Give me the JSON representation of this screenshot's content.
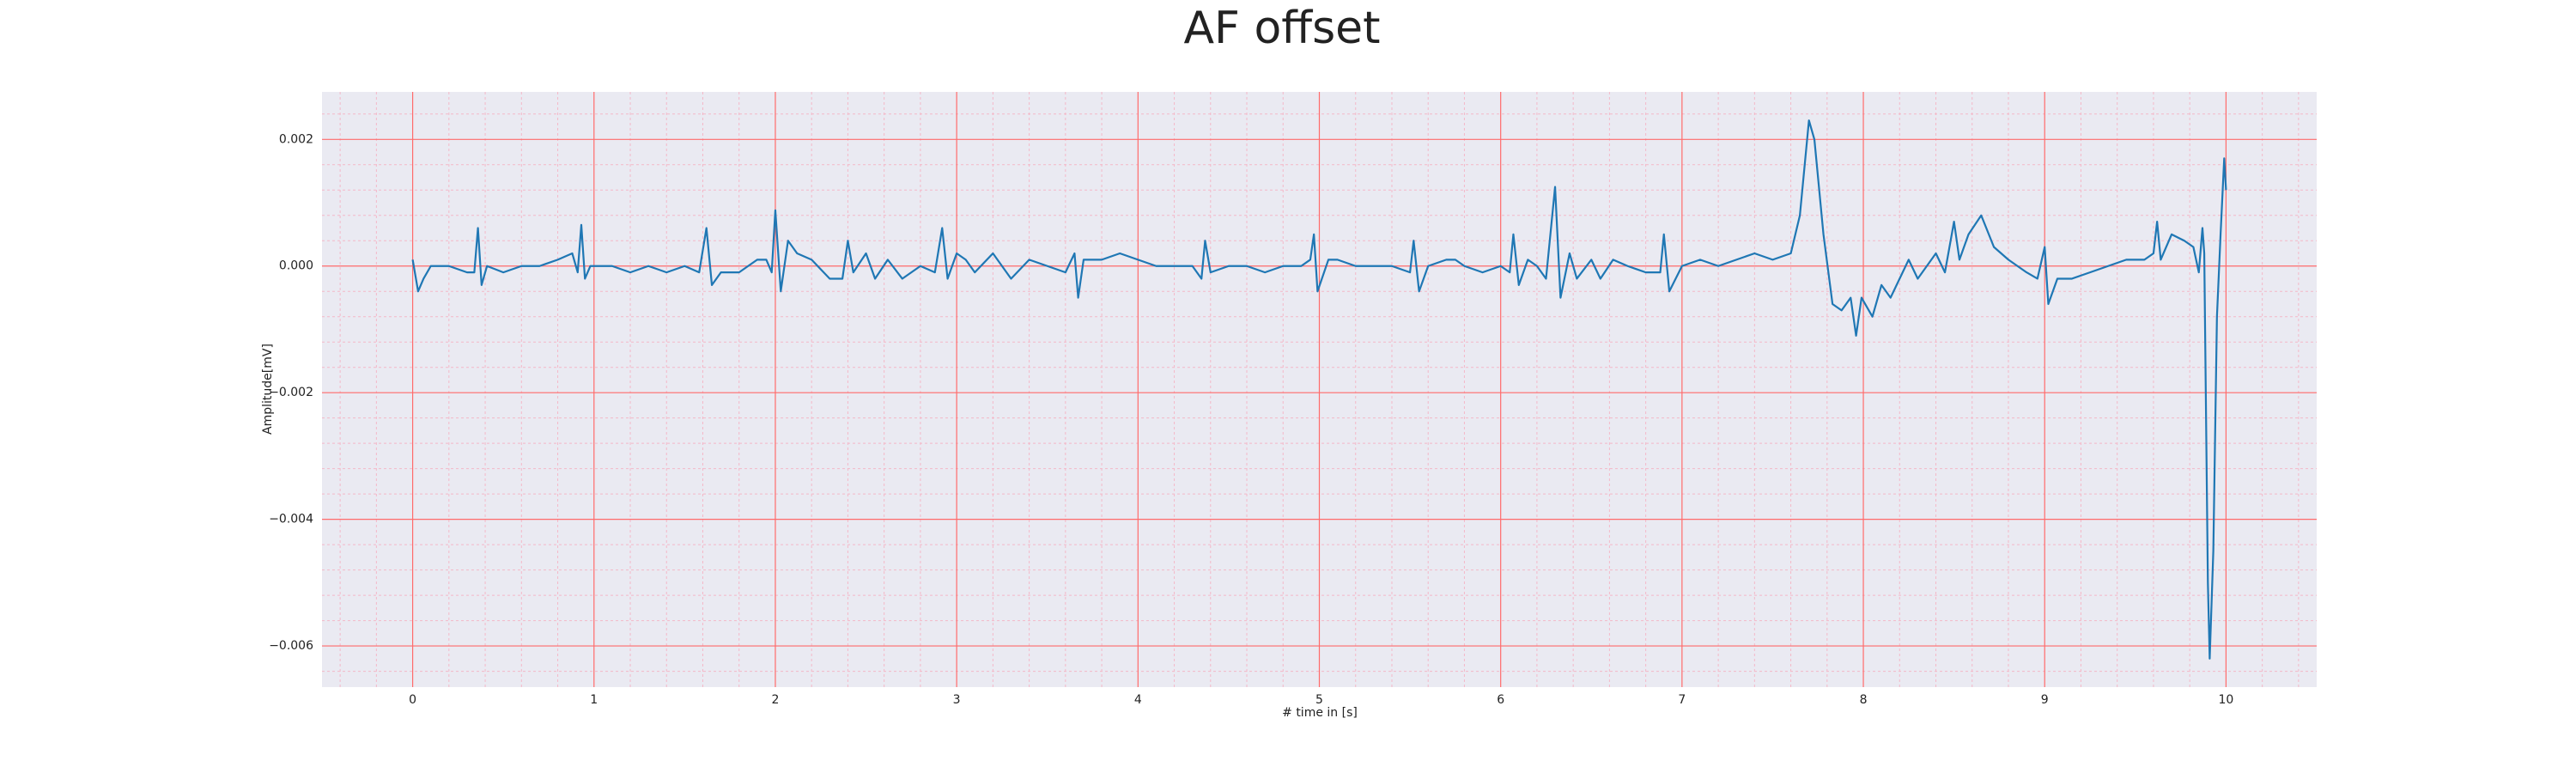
{
  "chart_data": {
    "type": "line",
    "title": "AF offset",
    "xlabel": "# time in [s]",
    "ylabel": "Amplitude[mV]",
    "color": "#1f77b4",
    "background": "#eaeaf2",
    "grid": true,
    "major_grid_color": "#ff6b6b",
    "minor_grid_color": "#f4b8c8",
    "xlim": [
      -0.5,
      10.5
    ],
    "ylim": [
      -0.00665,
      0.00275
    ],
    "xticks": [
      0,
      1,
      2,
      3,
      4,
      5,
      6,
      7,
      8,
      9,
      10
    ],
    "yticks": [
      0.002,
      {
        "value": 0,
        "label": "0.000"
      },
      {
        "value": -0.002,
        "label": "−0.002"
      },
      {
        "value": -0.004,
        "label": "−0.004"
      },
      {
        "value": -0.006,
        "label": "−0.006"
      }
    ],
    "xminorticks": [
      -0.4,
      -0.2,
      0.2,
      0.4,
      0.6,
      0.8,
      1.2,
      1.4,
      1.6,
      1.8,
      2.2,
      2.4,
      2.6,
      2.8,
      3.2,
      3.4,
      3.6,
      3.8,
      4.2,
      4.4,
      4.6,
      4.8,
      5.2,
      5.4,
      5.6,
      5.8,
      6.2,
      6.4,
      6.6,
      6.8,
      7.2,
      7.4,
      7.6,
      7.8,
      8.2,
      8.4,
      8.6,
      8.8,
      9.2,
      9.4,
      9.6,
      9.8,
      10.2,
      10.4
    ],
    "yminorticks": [
      -0.0064,
      -0.0056,
      -0.0052,
      -0.0048,
      -0.0044,
      -0.0036,
      -0.0032,
      -0.0028,
      -0.0024,
      -0.0016,
      -0.0012,
      -0.0008,
      -0.0004,
      0.0004,
      0.0008,
      0.0012,
      0.0016,
      0.0024
    ],
    "x": [
      0,
      0.03,
      0.06,
      0.1,
      0.2,
      0.3,
      0.34,
      0.36,
      0.38,
      0.41,
      0.5,
      0.6,
      0.7,
      0.8,
      0.88,
      0.91,
      0.93,
      0.95,
      0.98,
      1.1,
      1.2,
      1.3,
      1.4,
      1.5,
      1.58,
      1.62,
      1.65,
      1.7,
      1.8,
      1.9,
      1.95,
      1.98,
      2.0,
      2.03,
      2.07,
      2.12,
      2.2,
      2.3,
      2.37,
      2.4,
      2.43,
      2.5,
      2.55,
      2.62,
      2.7,
      2.8,
      2.88,
      2.92,
      2.95,
      3.0,
      3.05,
      3.1,
      3.2,
      3.3,
      3.4,
      3.5,
      3.6,
      3.65,
      3.67,
      3.7,
      3.8,
      3.9,
      4.0,
      4.1,
      4.2,
      4.3,
      4.35,
      4.37,
      4.4,
      4.5,
      4.6,
      4.7,
      4.8,
      4.9,
      4.95,
      4.97,
      4.99,
      5.05,
      5.1,
      5.2,
      5.3,
      5.4,
      5.5,
      5.52,
      5.55,
      5.6,
      5.7,
      5.75,
      5.8,
      5.9,
      6.0,
      6.05,
      6.07,
      6.1,
      6.15,
      6.2,
      6.25,
      6.3,
      6.33,
      6.38,
      6.42,
      6.5,
      6.55,
      6.62,
      6.7,
      6.8,
      6.88,
      6.9,
      6.93,
      7.0,
      7.1,
      7.2,
      7.3,
      7.4,
      7.5,
      7.6,
      7.65,
      7.7,
      7.73,
      7.78,
      7.83,
      7.88,
      7.93,
      7.96,
      7.99,
      8.05,
      8.1,
      8.15,
      8.2,
      8.25,
      8.3,
      8.4,
      8.45,
      8.5,
      8.53,
      8.58,
      8.65,
      8.72,
      8.8,
      8.9,
      8.96,
      9.0,
      9.02,
      9.07,
      9.15,
      9.25,
      9.35,
      9.45,
      9.55,
      9.6,
      9.62,
      9.64,
      9.7,
      9.77,
      9.82,
      9.85,
      9.87,
      9.88,
      9.9,
      9.91,
      9.93,
      9.95,
      9.97,
      9.99,
      10.0
    ],
    "values": [
      0.0001,
      -0.0004,
      -0.0002,
      0,
      0,
      -0.0001,
      -0.0001,
      0.0006,
      -0.0003,
      0,
      -0.0001,
      0,
      0,
      0.0001,
      0.0002,
      -0.0001,
      0.00065,
      -0.0002,
      0,
      0,
      -0.0001,
      0,
      -0.0001,
      0,
      -0.0001,
      0.0006,
      -0.0003,
      -0.0001,
      -0.0001,
      0.0001,
      0.0001,
      -0.0001,
      0.00088,
      -0.0004,
      0.0004,
      0.0002,
      0.0001,
      -0.0002,
      -0.0002,
      0.0004,
      -0.0001,
      0.0002,
      -0.0002,
      0.0001,
      -0.0002,
      0,
      -0.0001,
      0.0006,
      -0.0002,
      0.0002,
      0.0001,
      -0.0001,
      0.0002,
      -0.0002,
      0.0001,
      0,
      -0.0001,
      0.0002,
      -0.0005,
      0.0001,
      0.0001,
      0.0002,
      0.0001,
      0,
      0,
      0,
      -0.0002,
      0.0004,
      -0.0001,
      0,
      0,
      -0.0001,
      0,
      0,
      0.0001,
      0.0005,
      -0.0004,
      0.0001,
      0.0001,
      0,
      0,
      0,
      -0.0001,
      0.0004,
      -0.0004,
      0,
      0.0001,
      0.0001,
      0,
      -0.0001,
      0,
      -0.0001,
      0.0005,
      -0.0003,
      0.0001,
      0,
      -0.0002,
      0.00125,
      -0.0005,
      0.0002,
      -0.0002,
      0.0001,
      -0.0002,
      0.0001,
      0,
      -0.0001,
      -0.0001,
      0.0005,
      -0.0004,
      0,
      0.0001,
      0,
      0.0001,
      0.0002,
      0.0001,
      0.0002,
      0.0008,
      0.0023,
      0.002,
      0.0005,
      -0.0006,
      -0.0007,
      -0.0005,
      -0.0011,
      -0.0005,
      -0.0008,
      -0.0003,
      -0.0005,
      -0.0002,
      0.0001,
      -0.0002,
      0.0002,
      -0.0001,
      0.0007,
      0.0001,
      0.0005,
      0.0008,
      0.0003,
      0.0001,
      -0.0001,
      -0.0002,
      0.0003,
      -0.0006,
      -0.0002,
      -0.0002,
      -0.0001,
      0,
      0.0001,
      0.0001,
      0.0002,
      0.0007,
      0.0001,
      0.0005,
      0.0004,
      0.0003,
      -0.0001,
      0.0006,
      0.0002,
      -0.005,
      -0.0062,
      -0.0045,
      -0.0008,
      0.0005,
      0.0017,
      0.0012
    ]
  }
}
